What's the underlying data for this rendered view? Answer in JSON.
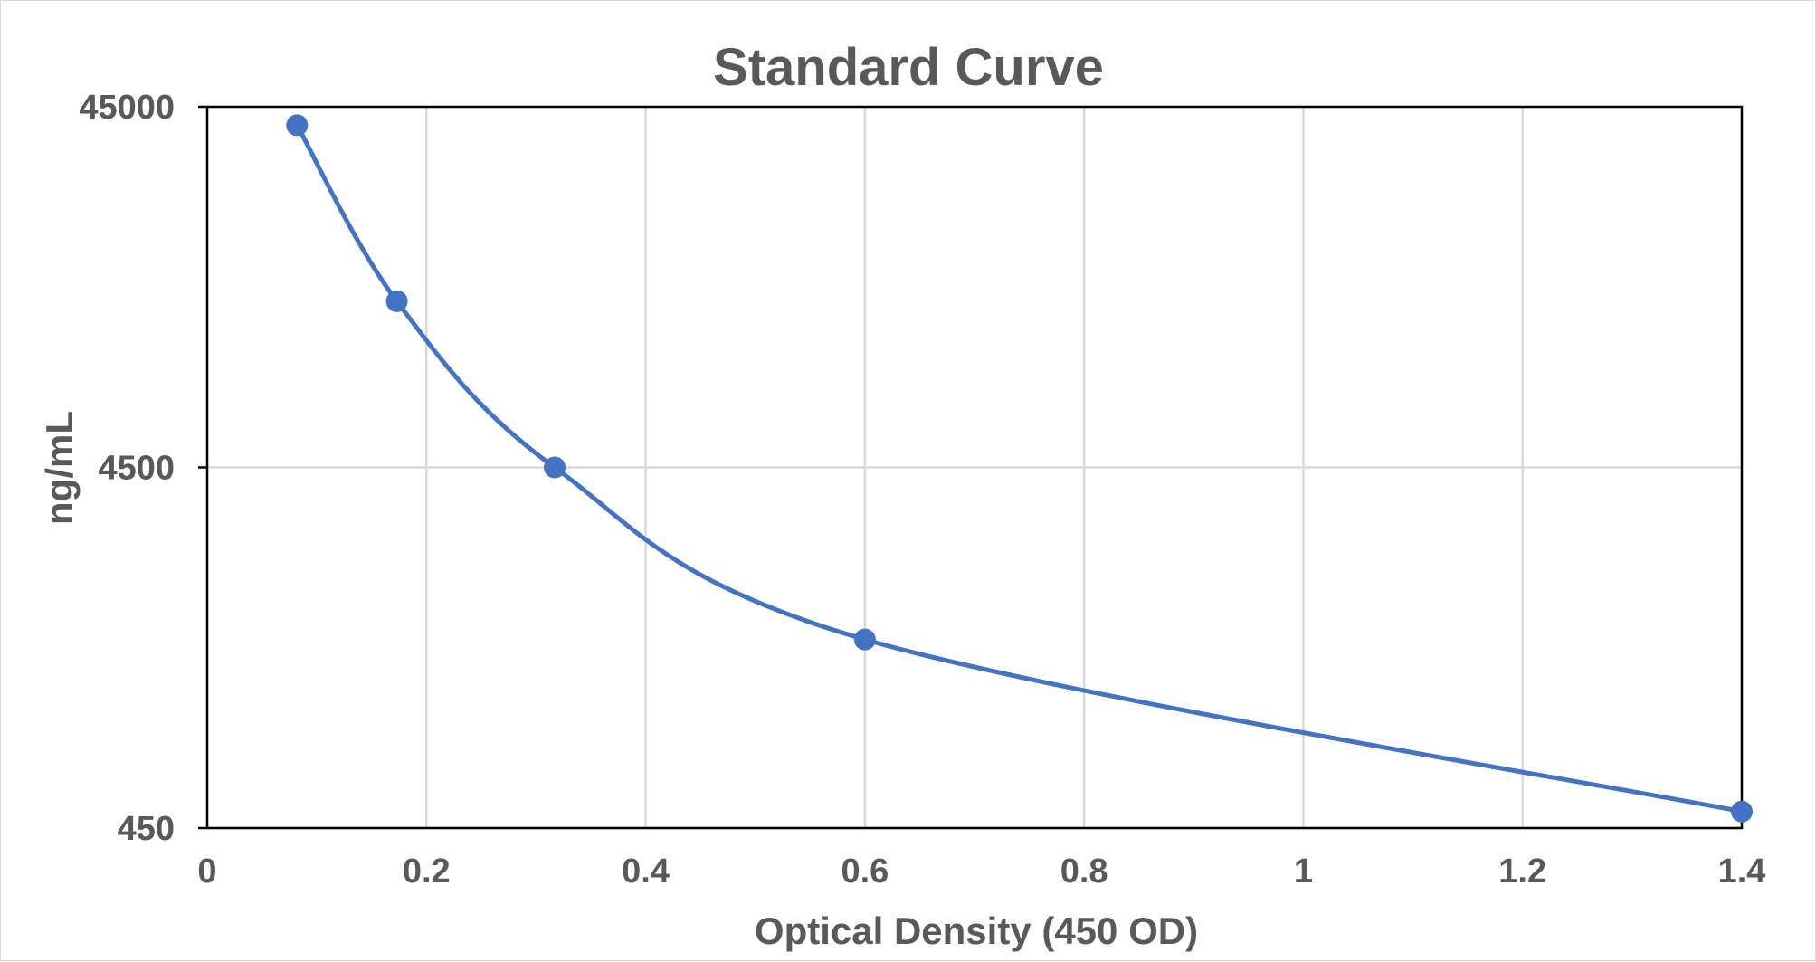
{
  "chart_data": {
    "type": "scatter",
    "title": "Standard Curve",
    "xlabel": "Optical Density (450 OD)",
    "ylabel": "ng/mL",
    "xlim": [
      0,
      1.4
    ],
    "ylim": [
      450,
      45000
    ],
    "y_scale": "log",
    "x_ticks": [
      "0",
      "0.2",
      "0.4",
      "0.6",
      "0.8",
      "1",
      "1.2",
      "1.4"
    ],
    "y_ticks": [
      "45000",
      "4500",
      "450"
    ],
    "grid": true,
    "smooth_line": true,
    "legend": "none",
    "series": [
      {
        "color": "#4472C4",
        "x": [
          0.082,
          0.173,
          0.317,
          0.6,
          1.4
        ],
        "y": [
          40000,
          13000,
          4500,
          1500,
          500
        ]
      }
    ]
  }
}
